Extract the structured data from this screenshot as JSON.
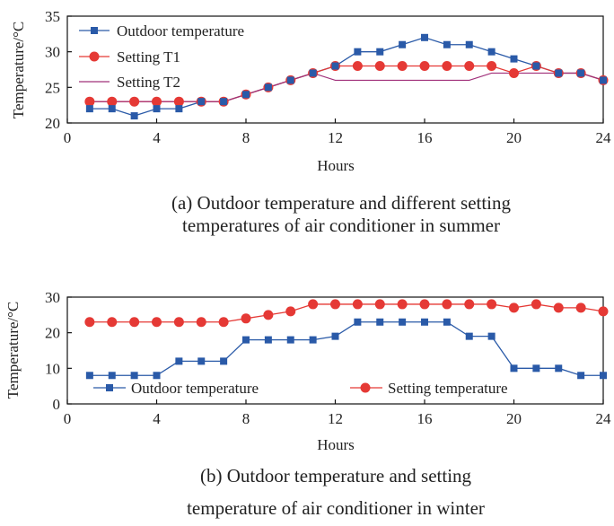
{
  "chart_data": [
    {
      "type": "line",
      "panel": "a",
      "x": [
        1,
        2,
        3,
        4,
        5,
        6,
        7,
        8,
        9,
        10,
        11,
        12,
        13,
        14,
        15,
        16,
        17,
        18,
        19,
        20,
        21,
        22,
        23,
        24
      ],
      "xlim": [
        0,
        24
      ],
      "xticks": [
        0,
        4,
        8,
        12,
        16,
        20,
        24
      ],
      "ylim": [
        20,
        35
      ],
      "yticks": [
        20,
        25,
        30,
        35
      ],
      "xlabel": "Hours",
      "ylabel": "Temperature/°C",
      "legend_position": "top-left",
      "series": [
        {
          "name": "Outdoor temperature",
          "marker": "square",
          "color": "#2a5aa8",
          "values": [
            22,
            22,
            21,
            22,
            22,
            23,
            23,
            24,
            25,
            26,
            27,
            28,
            30,
            30,
            31,
            32,
            31,
            31,
            30,
            29,
            28,
            27,
            27,
            26
          ]
        },
        {
          "name": "Setting T1",
          "marker": "circle",
          "color": "#e53935",
          "values": [
            23,
            23,
            23,
            23,
            23,
            23,
            23,
            24,
            25,
            26,
            27,
            28,
            28,
            28,
            28,
            28,
            28,
            28,
            28,
            27,
            28,
            27,
            27,
            26
          ]
        },
        {
          "name": "Setting T2",
          "marker": "none",
          "color": "#a0307a",
          "values": [
            23,
            23,
            23,
            23,
            23,
            23,
            23,
            24,
            25,
            26,
            27,
            26,
            26,
            26,
            26,
            26,
            26,
            26,
            27,
            27,
            27,
            27,
            27,
            26
          ]
        }
      ],
      "caption_line1": "(a) Outdoor temperature and different setting",
      "caption_line2": "temperatures of air conditioner in summer"
    },
    {
      "type": "line",
      "panel": "b",
      "x": [
        1,
        2,
        3,
        4,
        5,
        6,
        7,
        8,
        9,
        10,
        11,
        12,
        13,
        14,
        15,
        16,
        17,
        18,
        19,
        20,
        21,
        22,
        23,
        24
      ],
      "xlim": [
        0,
        24
      ],
      "xticks": [
        0,
        4,
        8,
        12,
        16,
        20,
        24
      ],
      "ylim": [
        0,
        30
      ],
      "yticks": [
        0,
        10,
        20,
        30
      ],
      "xlabel": "Hours",
      "ylabel": "Temperature/°C",
      "legend_position": "bottom",
      "series": [
        {
          "name": "Outdoor temperature",
          "marker": "square",
          "color": "#2a5aa8",
          "values": [
            8,
            8,
            8,
            8,
            12,
            12,
            12,
            18,
            18,
            18,
            18,
            19,
            23,
            23,
            23,
            23,
            23,
            19,
            19,
            10,
            10,
            10,
            8,
            8
          ]
        },
        {
          "name": "Setting temperature",
          "marker": "circle",
          "color": "#e53935",
          "values": [
            23,
            23,
            23,
            23,
            23,
            23,
            23,
            24,
            25,
            26,
            28,
            28,
            28,
            28,
            28,
            28,
            28,
            28,
            28,
            27,
            28,
            27,
            27,
            26
          ]
        }
      ],
      "caption_line1": "(b) Outdoor temperature and  setting",
      "caption_line2": "temperature of air conditioner in winter"
    }
  ]
}
